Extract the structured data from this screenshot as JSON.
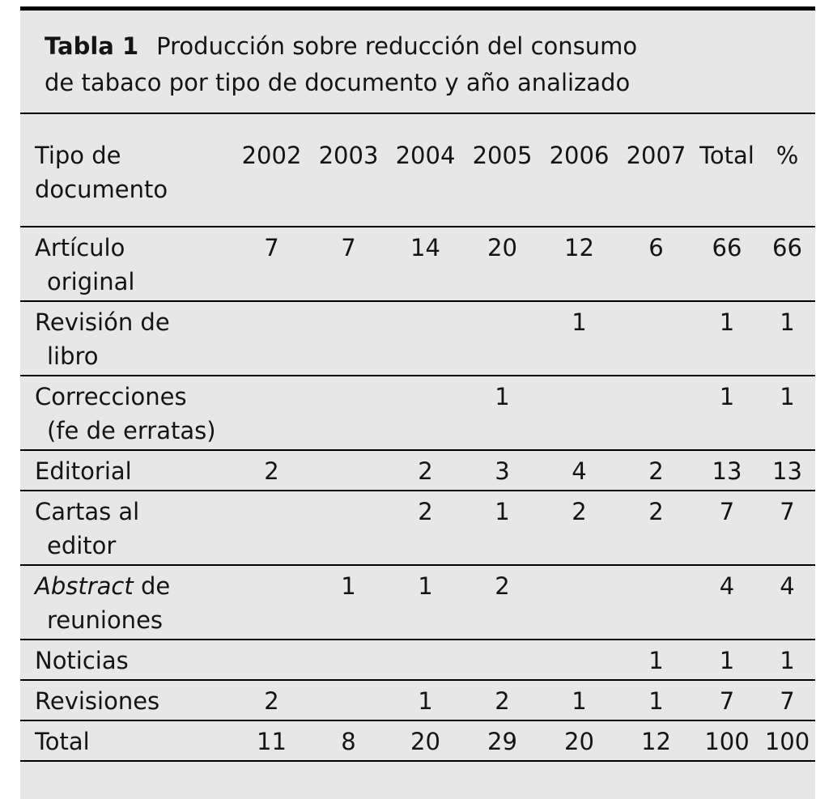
{
  "title": {
    "label": "Tabla 1",
    "text_line1": "Producción sobre reducción del consumo",
    "text_line2": "de tabaco por tipo de documento y año analizado"
  },
  "header": {
    "col_label_line1": "Tipo de",
    "col_label_line2": "documento",
    "years": [
      "2002",
      "2003",
      "2004",
      "2005",
      "2006",
      "2007"
    ],
    "total_label": "Total",
    "percent_label": "%"
  },
  "rows": [
    {
      "label_italic": "",
      "label_line1": "Artículo",
      "label_line2": "original",
      "values": [
        "7",
        "7",
        "14",
        "20",
        "12",
        "6",
        "66",
        "66"
      ]
    },
    {
      "label_italic": "",
      "label_line1": "Revisión de",
      "label_line2": "libro",
      "values": [
        "",
        "",
        "",
        "",
        "1",
        "",
        "1",
        "1"
      ]
    },
    {
      "label_italic": "",
      "label_line1": "Correcciones",
      "label_line2": "(fe de erratas)",
      "values": [
        "",
        "",
        "",
        "1",
        "",
        "",
        "1",
        "1"
      ]
    },
    {
      "label_italic": "",
      "label_line1": "Editorial",
      "label_line2": "",
      "values": [
        "2",
        "",
        "2",
        "3",
        "4",
        "2",
        "13",
        "13"
      ]
    },
    {
      "label_italic": "",
      "label_line1": "Cartas al",
      "label_line2": "editor",
      "values": [
        "",
        "",
        "2",
        "1",
        "2",
        "2",
        "7",
        "7"
      ]
    },
    {
      "label_italic": "Abstract",
      "label_line1": " de",
      "label_line2": "reuniones",
      "values": [
        "",
        "1",
        "1",
        "2",
        "",
        "",
        "4",
        "4"
      ]
    },
    {
      "label_italic": "",
      "label_line1": "Noticias",
      "label_line2": "",
      "values": [
        "",
        "",
        "",
        "",
        "",
        "1",
        "1",
        "1"
      ]
    },
    {
      "label_italic": "",
      "label_line1": "Revisiones",
      "label_line2": "",
      "values": [
        "2",
        "",
        "1",
        "2",
        "1",
        "1",
        "7",
        "7"
      ]
    },
    {
      "label_italic": "",
      "label_line1": "Total",
      "label_line2": "",
      "values": [
        "11",
        "8",
        "20",
        "29",
        "20",
        "12",
        "100",
        "100"
      ]
    }
  ],
  "chart_data": {
    "type": "table",
    "title": "Tabla 1 Producción sobre reducción del consumo de tabaco por tipo de documento y año analizado",
    "columns": [
      "Tipo de documento",
      "2002",
      "2003",
      "2004",
      "2005",
      "2006",
      "2007",
      "Total",
      "%"
    ],
    "rows": [
      [
        "Artículo original",
        7,
        7,
        14,
        20,
        12,
        6,
        66,
        66
      ],
      [
        "Revisión de libro",
        null,
        null,
        null,
        null,
        1,
        null,
        1,
        1
      ],
      [
        "Correcciones (fe de erratas)",
        null,
        null,
        null,
        1,
        null,
        null,
        1,
        1
      ],
      [
        "Editorial",
        2,
        null,
        2,
        3,
        4,
        2,
        13,
        13
      ],
      [
        "Cartas al editor",
        null,
        null,
        2,
        1,
        2,
        2,
        7,
        7
      ],
      [
        "Abstract de reuniones",
        null,
        1,
        1,
        2,
        null,
        null,
        4,
        4
      ],
      [
        "Noticias",
        null,
        null,
        null,
        null,
        null,
        1,
        1,
        1
      ],
      [
        "Revisiones",
        2,
        null,
        1,
        2,
        1,
        1,
        7,
        7
      ],
      [
        "Total",
        11,
        8,
        20,
        29,
        20,
        12,
        100,
        100
      ]
    ]
  }
}
